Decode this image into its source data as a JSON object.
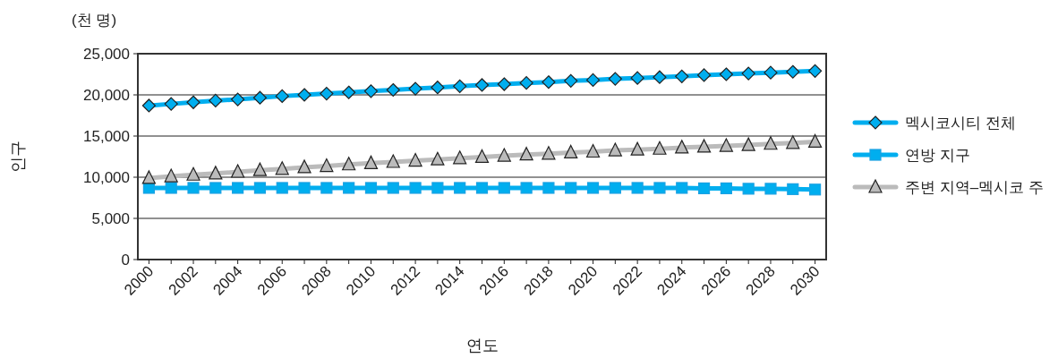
{
  "chart_data": {
    "type": "line",
    "annotations": [
      "(천 명)"
    ],
    "xlabel": "연도",
    "ylabel": "인구",
    "categories": [
      "2000",
      null,
      "2002",
      null,
      "2004",
      null,
      "2006",
      null,
      "2008",
      null,
      "2010",
      null,
      "2012",
      null,
      "2014",
      null,
      "2016",
      null,
      "2018",
      null,
      "2020",
      null,
      "2022",
      null,
      "2024",
      null,
      "2026",
      null,
      "2028",
      null,
      "2030"
    ],
    "series": [
      {
        "name": "멕시코시티 전체",
        "color": "#00aeef",
        "marker": "diamond",
        "values": [
          18700,
          18900,
          19100,
          19300,
          19450,
          19650,
          19850,
          20000,
          20150,
          20300,
          20450,
          20600,
          20750,
          20900,
          21050,
          21200,
          21300,
          21450,
          21550,
          21700,
          21800,
          21950,
          22050,
          22150,
          22250,
          22400,
          22500,
          22600,
          22700,
          22800,
          22900
        ]
      },
      {
        "name": "연방 지구",
        "color": "#00aeef",
        "marker": "square",
        "values": [
          8700,
          8700,
          8700,
          8700,
          8700,
          8700,
          8700,
          8700,
          8700,
          8700,
          8700,
          8700,
          8700,
          8700,
          8700,
          8700,
          8700,
          8700,
          8700,
          8700,
          8700,
          8700,
          8700,
          8700,
          8700,
          8650,
          8650,
          8600,
          8600,
          8550,
          8500
        ]
      },
      {
        "name": "주변 지역–멕시코 주",
        "color": "#bbbbbb",
        "marker": "triangle",
        "values": [
          9900,
          10100,
          10300,
          10450,
          10650,
          10850,
          11000,
          11200,
          11350,
          11550,
          11700,
          11850,
          12000,
          12150,
          12300,
          12450,
          12600,
          12750,
          12850,
          13000,
          13100,
          13250,
          13350,
          13450,
          13600,
          13700,
          13800,
          13900,
          14050,
          14150,
          14300
        ]
      }
    ],
    "ylim": [
      0,
      25000
    ],
    "yticks": [
      0,
      {
        "value": 5000,
        "label": "5,000"
      },
      {
        "value": 10000,
        "label": "10,000"
      },
      {
        "value": 15000,
        "label": "15,000"
      },
      {
        "value": 20000,
        "label": "20,000"
      },
      {
        "value": 25000,
        "label": "25,000"
      }
    ],
    "grid": "y",
    "legend": "right"
  }
}
